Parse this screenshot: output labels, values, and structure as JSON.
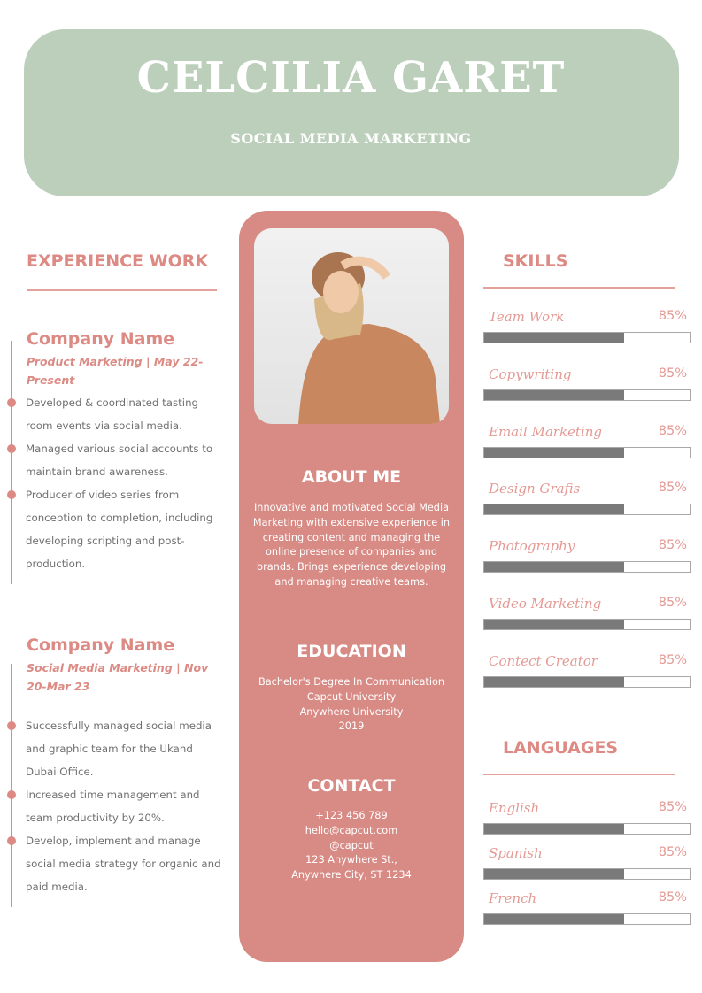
{
  "header": {
    "name": "CELCILIA GARET",
    "role": "SOCIAL MEDIA MARKETING"
  },
  "colors": {
    "header_bg": "#bccfbb",
    "accent": "#d88a84",
    "bar_fill": "#7a7a7a"
  },
  "experience": {
    "title": "EXPERIENCE WORK",
    "jobs": [
      {
        "company": "Company Name",
        "subtitle": "Product Marketing | May 22-Present",
        "bullets": [
          [
            "Developed & coordinated tasting",
            "room events via social media."
          ],
          [
            "Managed various social accounts to",
            "maintain brand awareness."
          ],
          [
            "Producer of video series from",
            "conception to completion, including",
            "developing scripting and post-",
            "production."
          ]
        ]
      },
      {
        "company": "Company Name",
        "subtitle": "Social Media Marketing | Nov 20-Mar 23",
        "bullets": [
          [
            "Successfully managed social media",
            "and graphic team for the Ukand",
            "Dubai Office."
          ],
          [
            "Increased time management and",
            "team productivity by 20%."
          ],
          [
            "Develop, implement and manage",
            "social media strategy for organic and",
            " paid media."
          ]
        ]
      }
    ]
  },
  "about": {
    "title": "ABOUT ME",
    "text": "Innovative and motivated Social Media Marketing with extensive experience in creating content and managing the online presence of companies and brands. Brings experience developing and managing creative teams."
  },
  "education": {
    "title": "EDUCATION",
    "lines": [
      "Bachelor's Degree In Communication",
      "Capcut University",
      "Anywhere University",
      "2019"
    ]
  },
  "contact": {
    "title": "CONTACT",
    "lines": [
      "+123  456 789",
      "hello@capcut.com",
      "@capcut",
      "123 Anywhere St.,",
      "Anywhere City, ST 1234"
    ]
  },
  "skills": {
    "title": "SKILLS",
    "items": [
      {
        "name": "Team Work",
        "percent": "85%",
        "fill": 0.68
      },
      {
        "name": "Copywriting",
        "percent": "85%",
        "fill": 0.68
      },
      {
        "name": "Email Marketing",
        "percent": "85%",
        "fill": 0.68
      },
      {
        "name": "Design Grafis",
        "percent": "85%",
        "fill": 0.68
      },
      {
        "name": "Photography",
        "percent": "85%",
        "fill": 0.68
      },
      {
        "name": "Video Marketing",
        "percent": "85%",
        "fill": 0.68
      },
      {
        "name": "Contect Creator",
        "percent": "85%",
        "fill": 0.68
      }
    ]
  },
  "languages": {
    "title": "LANGUAGES",
    "items": [
      {
        "name": "English",
        "percent": "85%",
        "fill": 0.68
      },
      {
        "name": "Spanish",
        "percent": "85%",
        "fill": 0.68
      },
      {
        "name": "French",
        "percent": "85%",
        "fill": 0.68
      }
    ]
  }
}
